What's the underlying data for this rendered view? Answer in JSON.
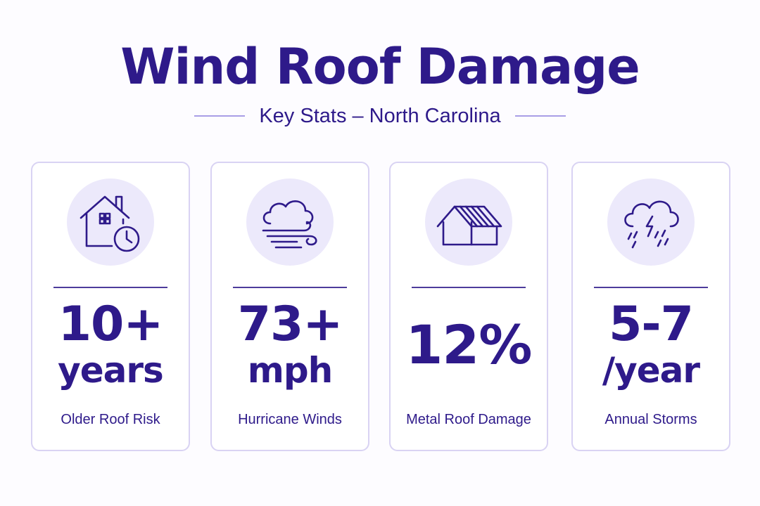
{
  "header": {
    "title": "Wind Roof Damage",
    "subtitle": "Key Stats – North Carolina"
  },
  "colors": {
    "primary": "#2e1a8a",
    "icon_bg": "#ece9fb",
    "card_border": "#d9d3f3",
    "accent_line": "#a99ee6"
  },
  "cards": [
    {
      "icon": "house-clock-icon",
      "value_line1": "10+",
      "value_line2": "years",
      "label": "Older Roof Risk"
    },
    {
      "icon": "wind-cloud-icon",
      "value_line1": "73+",
      "value_line2": "mph",
      "label": "Hurricane Winds"
    },
    {
      "icon": "metal-roof-icon",
      "value_line1": "12%",
      "label": "Metal Roof Damage"
    },
    {
      "icon": "storm-cloud-icon",
      "value_line1": "5-7",
      "value_line2": "/year",
      "label": "Annual Storms"
    }
  ]
}
